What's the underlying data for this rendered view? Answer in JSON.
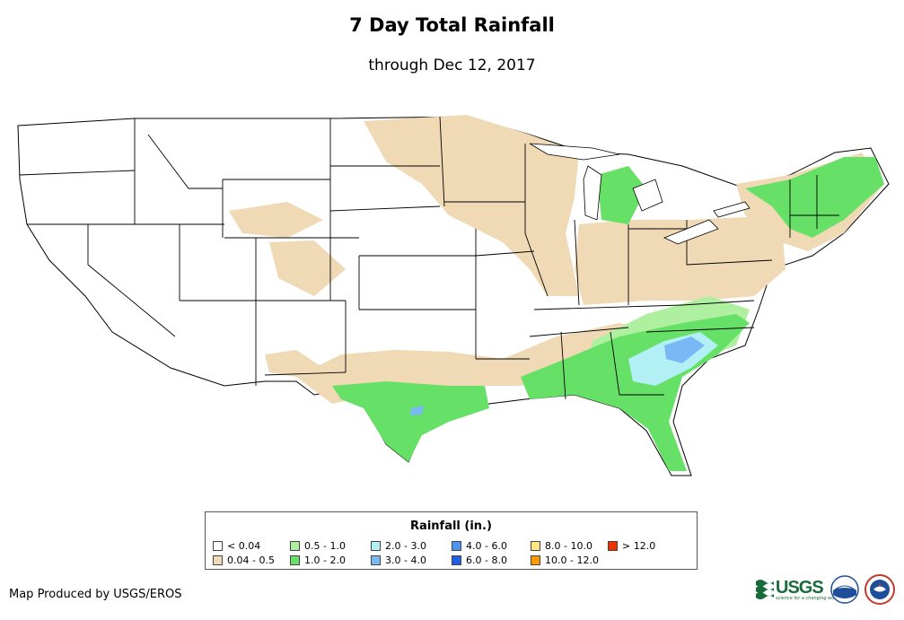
{
  "title": "7 Day Total Rainfall",
  "subtitle": "through Dec 12, 2017",
  "legend": {
    "title": "Rainfall (in.)",
    "items": [
      {
        "label": "< 0.04",
        "color": "#ffffff"
      },
      {
        "label": "0.04 - 0.5",
        "color": "#f0d9b5"
      },
      {
        "label": "0.5 - 1.0",
        "color": "#aef0a0"
      },
      {
        "label": "1.0 - 2.0",
        "color": "#66e066"
      },
      {
        "label": "2.0 - 3.0",
        "color": "#b3f0f5"
      },
      {
        "label": "3.0 - 4.0",
        "color": "#7ab8f5"
      },
      {
        "label": "4.0 - 6.0",
        "color": "#4a96f0"
      },
      {
        "label": "6.0 - 8.0",
        "color": "#1f5ee6"
      },
      {
        "label": "8.0 - 10.0",
        "color": "#ffe680"
      },
      {
        "label": "10.0 - 12.0",
        "color": "#ff9900"
      },
      {
        "label": "> 12.0",
        "color": "#ee3300"
      }
    ]
  },
  "credit": "Map Produced by USGS/EROS",
  "logos": {
    "usgs": "USGS",
    "usgs_tagline": "science for a changing world"
  }
}
